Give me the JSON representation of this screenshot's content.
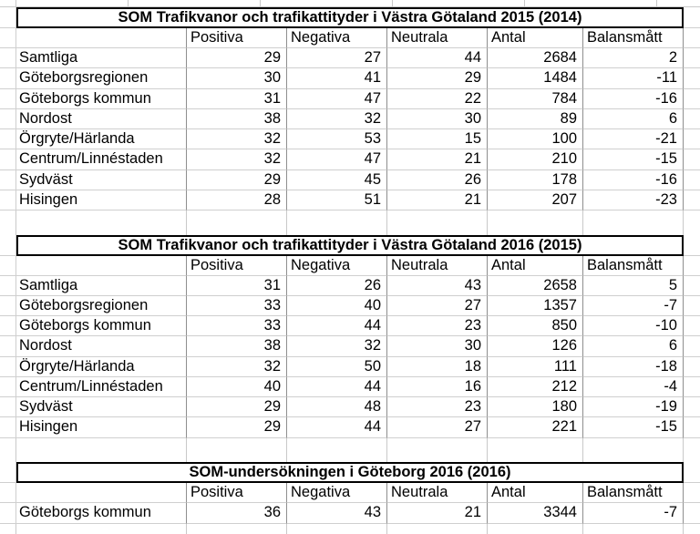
{
  "colors": {
    "background": "#ffffff",
    "text": "#000000",
    "title_border": "#000000",
    "grid_vertical": "#8e8e8e",
    "grid_horizontal": "#cfcfcf",
    "sheet_gridline": "#c9c9c9"
  },
  "columns": [
    "Positiva",
    "Negativa",
    "Neutrala",
    "Antal",
    "Balansmått"
  ],
  "tables": [
    {
      "title": "SOM Trafikvanor och trafikattityder i Västra Götaland 2015 (2014)",
      "rows": [
        {
          "label": "Samtliga",
          "values": [
            29,
            27,
            44,
            2684,
            2
          ]
        },
        {
          "label": "Göteborgsregionen",
          "values": [
            30,
            41,
            29,
            1484,
            -11
          ]
        },
        {
          "label": "Göteborgs kommun",
          "values": [
            31,
            47,
            22,
            784,
            -16
          ]
        },
        {
          "label": "Nordost",
          "values": [
            38,
            32,
            30,
            89,
            6
          ]
        },
        {
          "label": "Örgryte/Härlanda",
          "values": [
            32,
            53,
            15,
            100,
            -21
          ]
        },
        {
          "label": "Centrum/Linnéstaden",
          "values": [
            32,
            47,
            21,
            210,
            -15
          ]
        },
        {
          "label": "Sydväst",
          "values": [
            29,
            45,
            26,
            178,
            -16
          ]
        },
        {
          "label": "Hisingen",
          "values": [
            28,
            51,
            21,
            207,
            -23
          ]
        }
      ]
    },
    {
      "title": "SOM Trafikvanor och trafikattityder i Västra Götaland 2016 (2015)",
      "rows": [
        {
          "label": "Samtliga",
          "values": [
            31,
            26,
            43,
            2658,
            5
          ]
        },
        {
          "label": "Göteborgsregionen",
          "values": [
            33,
            40,
            27,
            1357,
            -7
          ]
        },
        {
          "label": "Göteborgs kommun",
          "values": [
            33,
            44,
            23,
            850,
            -10
          ]
        },
        {
          "label": "Nordost",
          "values": [
            38,
            32,
            30,
            126,
            6
          ]
        },
        {
          "label": "Örgryte/Härlanda",
          "values": [
            32,
            50,
            18,
            111,
            -18
          ]
        },
        {
          "label": "Centrum/Linnéstaden",
          "values": [
            40,
            44,
            16,
            212,
            -4
          ]
        },
        {
          "label": "Sydväst",
          "values": [
            29,
            48,
            23,
            180,
            -19
          ]
        },
        {
          "label": "Hisingen",
          "values": [
            29,
            44,
            27,
            221,
            -15
          ]
        }
      ]
    },
    {
      "title": "SOM-undersökningen i Göteborg 2016 (2016)",
      "rows": [
        {
          "label": "Göteborgs kommun",
          "values": [
            36,
            43,
            21,
            3344,
            -7
          ]
        }
      ]
    }
  ]
}
